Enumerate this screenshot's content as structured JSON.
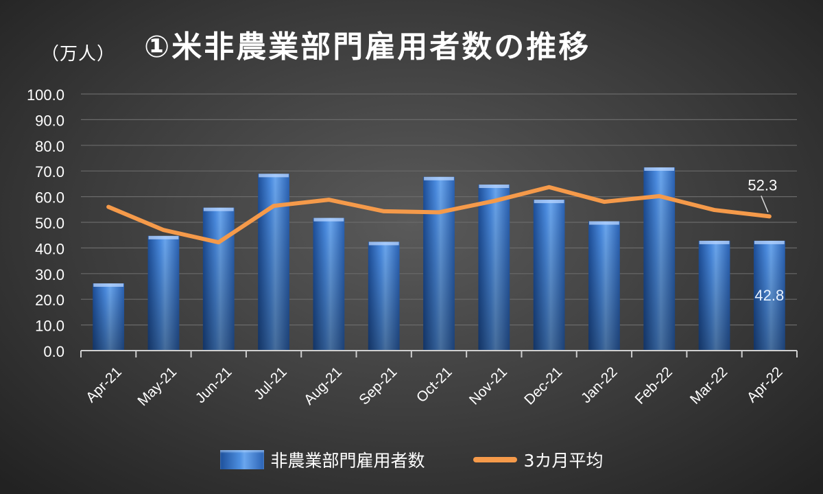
{
  "header": {
    "unit": "（万人）",
    "title": "①米非農業部門雇用者数の推移"
  },
  "colors": {
    "bar": "#3a78d0",
    "bar_light": "#6aa6ee",
    "bar_dark": "#1d4f9a",
    "line": "#f59a4a",
    "text": "#ffffff",
    "grid": "#6a6a6a",
    "axis": "#d0d0d0"
  },
  "chart_data": {
    "type": "bar",
    "categories": [
      "Apr-21",
      "May-21",
      "Jun-21",
      "Jul-21",
      "Aug-21",
      "Sep-21",
      "Oct-21",
      "Nov-21",
      "Dec-21",
      "Jan-22",
      "Feb-22",
      "Mar-22",
      "Apr-22"
    ],
    "series": [
      {
        "name": "非農業部門雇用者数",
        "type": "bar",
        "values": [
          26.2,
          44.7,
          55.7,
          68.9,
          51.7,
          42.4,
          67.7,
          64.7,
          58.8,
          50.4,
          71.4,
          42.8,
          42.8
        ]
      },
      {
        "name": "3カ月平均",
        "type": "line",
        "values": [
          56.0,
          47.0,
          42.2,
          56.4,
          58.8,
          54.3,
          53.9,
          58.3,
          63.7,
          58.0,
          60.2,
          54.8,
          52.3
        ]
      }
    ],
    "ylim": [
      0,
      100
    ],
    "yticks": [
      "0.0",
      "10.0",
      "20.0",
      "30.0",
      "40.0",
      "50.0",
      "60.0",
      "70.0",
      "80.0",
      "90.0",
      "100.0"
    ],
    "data_labels": {
      "bar_last": "42.8",
      "line_last": "52.3"
    },
    "grid": true,
    "legend_position": "bottom"
  }
}
